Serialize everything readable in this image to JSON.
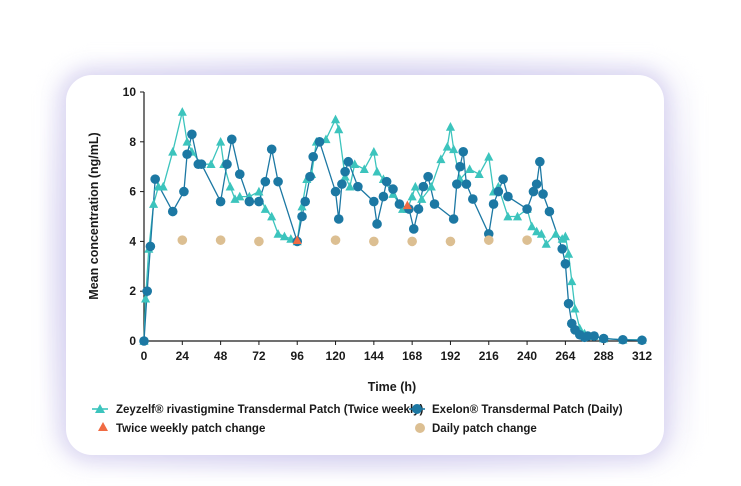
{
  "chart_data": {
    "type": "line",
    "xlabel": "Time (h)",
    "ylabel": "Mean concentration (ng/mL)",
    "xlim": [
      0,
      312
    ],
    "ylim": [
      0,
      10
    ],
    "xticks": [
      0,
      24,
      48,
      72,
      96,
      120,
      144,
      168,
      192,
      216,
      240,
      264,
      288,
      312
    ],
    "yticks": [
      0,
      2,
      4,
      6,
      8,
      10
    ],
    "grid": false,
    "legend_placement": "bottom",
    "series": [
      {
        "name": "Zeyzelf® rivastigmine Transdermal Patch (Twice weekly)",
        "color": "#3cc4bd",
        "marker": "triangle",
        "x": [
          0,
          1,
          3,
          6,
          9,
          12,
          18,
          24,
          27,
          30,
          36,
          42,
          48,
          50,
          54,
          57,
          60,
          66,
          72,
          76,
          80,
          84,
          88,
          92,
          96,
          99,
          102,
          105,
          108,
          114,
          120,
          122,
          126,
          129,
          132,
          138,
          144,
          146,
          150,
          156,
          162,
          165,
          168,
          170,
          174,
          180,
          186,
          190,
          192,
          194,
          198,
          204,
          210,
          216,
          219,
          222,
          228,
          234,
          240,
          243,
          246,
          249,
          252,
          258,
          262,
          264,
          266,
          268,
          270,
          273,
          276,
          282,
          288,
          300,
          312
        ],
        "y": [
          0,
          1.7,
          3.7,
          5.5,
          6.2,
          6.2,
          7.6,
          9.2,
          8.0,
          7.6,
          7.1,
          7.1,
          8.0,
          7.1,
          6.2,
          5.7,
          5.8,
          5.8,
          6.0,
          5.3,
          5.0,
          4.3,
          4.2,
          4.1,
          4.0,
          5.4,
          6.5,
          6.7,
          8.0,
          8.1,
          8.9,
          8.5,
          6.6,
          6.2,
          7.1,
          6.9,
          7.6,
          6.8,
          6.5,
          5.9,
          5.3,
          5.3,
          5.8,
          6.2,
          5.7,
          6.2,
          7.3,
          7.8,
          8.6,
          7.7,
          6.5,
          6.9,
          6.7,
          7.4,
          6.0,
          6.2,
          5.0,
          5.0,
          5.3,
          4.6,
          4.4,
          4.3,
          3.9,
          4.3,
          4.1,
          4.2,
          3.5,
          2.4,
          1.3,
          0.5,
          0.3,
          0.2,
          0.1,
          0.05,
          0.05
        ]
      },
      {
        "name": "Exelon® Transdermal Patch (Daily)",
        "color": "#1c78a3",
        "marker": "circle",
        "x": [
          0,
          2,
          4,
          7,
          18,
          25,
          27,
          30,
          34,
          36,
          48,
          52,
          55,
          60,
          66,
          72,
          76,
          80,
          84,
          96,
          99,
          101,
          104,
          106,
          110,
          120,
          122,
          124,
          126,
          128,
          134,
          144,
          146,
          150,
          152,
          156,
          160,
          166,
          169,
          172,
          175,
          178,
          182,
          194,
          196,
          198,
          200,
          202,
          206,
          216,
          219,
          222,
          225,
          228,
          240,
          244,
          246,
          248,
          250,
          254,
          262,
          264,
          266,
          268,
          270,
          273,
          276,
          278,
          282,
          288,
          300,
          312
        ],
        "y": [
          0,
          2.0,
          3.8,
          6.5,
          5.2,
          6.0,
          7.5,
          8.3,
          7.1,
          7.1,
          5.6,
          7.1,
          8.1,
          6.7,
          5.6,
          5.6,
          6.4,
          7.7,
          6.4,
          4.0,
          5.0,
          5.6,
          6.6,
          7.4,
          8.0,
          6.0,
          4.9,
          6.3,
          6.8,
          7.2,
          6.2,
          5.6,
          4.7,
          5.8,
          6.4,
          6.1,
          5.5,
          5.3,
          4.5,
          5.3,
          6.2,
          6.6,
          5.5,
          4.9,
          6.3,
          7.0,
          7.6,
          6.3,
          5.7,
          4.3,
          5.5,
          6.0,
          6.5,
          5.8,
          5.3,
          6.0,
          6.3,
          7.2,
          5.9,
          5.2,
          3.7,
          3.1,
          1.5,
          0.7,
          0.45,
          0.25,
          0.15,
          0.2,
          0.2,
          0.1,
          0.05,
          0.03
        ]
      }
    ],
    "events": [
      {
        "name": "Twice weekly patch change",
        "color": "#f06b43",
        "marker": "triangle",
        "x": [
          96,
          165
        ],
        "y": [
          4.05,
          5.45
        ]
      },
      {
        "name": "Daily patch change",
        "color": "#dcbf92",
        "marker": "circle",
        "x": [
          24,
          48,
          72,
          120,
          144,
          168,
          192,
          216,
          240
        ],
        "y": [
          4.05,
          4.05,
          4.0,
          4.05,
          4.0,
          4.0,
          4.0,
          4.05,
          4.05
        ]
      }
    ]
  },
  "legend": {
    "zeyzelf": "Zeyzelf® rivastigmine Transdermal Patch (Twice weekly)",
    "exelon": "Exelon® Transdermal Patch (Daily)",
    "twice_weekly": "Twice weekly patch change",
    "daily": "Daily patch change"
  }
}
